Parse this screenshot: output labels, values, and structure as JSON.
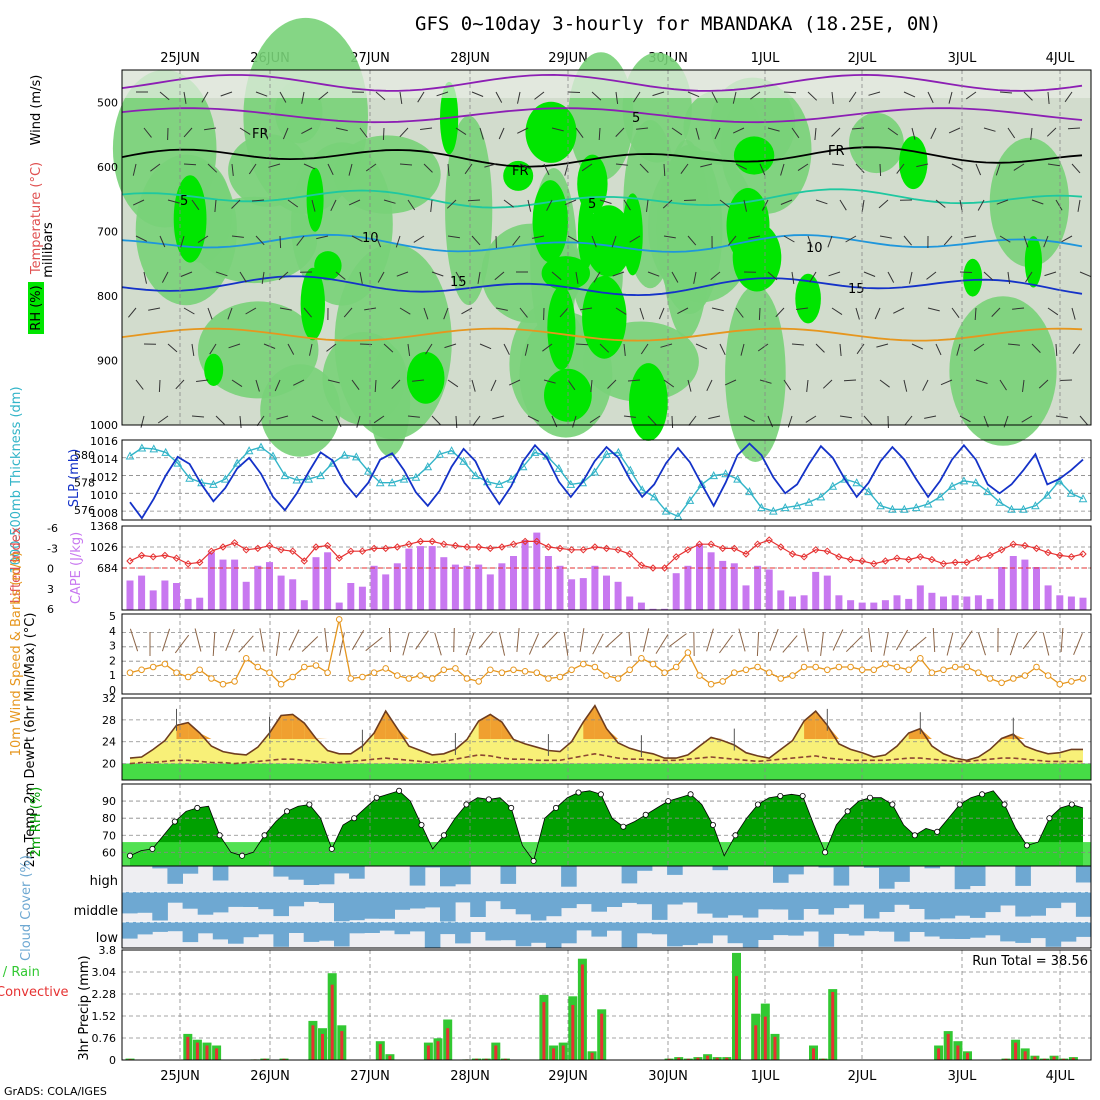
{
  "title": "GFS 0~10day 3-hourly for MBANDAKA (18.25E, 0N)",
  "credit": "GrADS: COLA/IGES",
  "colors": {
    "rh_light": "#d2dccd",
    "rh_mid": "#78d278",
    "rh_dark": "#00e600",
    "slp_line": "#1432c8",
    "thickness_line": "#32b4c8",
    "cape_bar": "#c878f0",
    "lifted_index": "#e63232",
    "wind_speed": "#e6961e",
    "barbs": "#8c6446",
    "temp_band_hot": "#f0a030",
    "temp_band_warm": "#f8f078",
    "temp_band_cool": "#46dc46",
    "temp_line": "#6e3c1e",
    "rh2m_dark": "#00a000",
    "rh2m_light": "#32dc32",
    "cloud": "#6ea8d2",
    "precip_total": "#32c832",
    "precip_conv": "#e63232"
  },
  "chart_data": [
    {
      "type": "heatmap",
      "panel": "upper-air cross section",
      "xlabel": "",
      "ylabel": "millibars",
      "side_labels": [
        "RH (%)",
        "Temperature (°C)",
        "Wind (m/s)"
      ],
      "ylim": [
        1000,
        450
      ],
      "y_ticks": [
        500,
        600,
        700,
        800,
        900,
        1000
      ],
      "x_ticks": [
        "25JUN",
        "26JUN",
        "27JUN",
        "28JUN",
        "29JUN",
        "30JUN",
        "1JUL",
        "2JUL",
        "3JUL",
        "4JUL"
      ],
      "isotherms": [
        {
          "label": "FR",
          "level": 585
        },
        {
          "label": "5",
          "level": 650
        },
        {
          "label": "10",
          "level": 720
        },
        {
          "label": "15",
          "level": 785
        }
      ],
      "contour_labels": [
        "5",
        "FR",
        "FR",
        "FR",
        "5",
        "5",
        "10",
        "10",
        "15",
        "15"
      ]
    },
    {
      "type": "line",
      "panel": "SLP and thickness",
      "ylabel_left": "1000-500mb Thickness (dm)",
      "ylabel_right": "SLP (mb)",
      "left_ticks": [
        "576",
        "578",
        "580"
      ],
      "right_ticks": [
        "1008",
        "1010",
        "1012",
        "1014",
        "1016"
      ],
      "ylim": [
        1007,
        1016
      ],
      "series": [
        {
          "name": "SLP",
          "values": [
            1009.0,
            1007.2,
            1009.4,
            1012.0,
            1014.1,
            1013.3,
            1011.0,
            1009.1,
            1010.6,
            1012.8,
            1014.0,
            1012.2,
            1009.6,
            1008.1,
            1010.0,
            1012.4,
            1014.6,
            1013.7,
            1011.2,
            1009.6,
            1011.2,
            1013.8,
            1014.5,
            1012.6,
            1010.1,
            1008.6,
            1010.3,
            1013.0,
            1015.0,
            1013.6,
            1010.8,
            1008.8,
            1010.8,
            1013.6,
            1015.4,
            1014.0,
            1011.3,
            1009.6,
            1011.3,
            1013.6,
            1015.2,
            1014.0,
            1011.5,
            1009.6,
            1011.0,
            1013.4,
            1015.1,
            1013.5,
            1011.0,
            1008.6,
            1011.2,
            1014.3,
            1015.6,
            1014.3,
            1011.8,
            1010.0,
            1011.0,
            1013.3,
            1015.3,
            1014.0,
            1011.6,
            1009.6,
            1011.2,
            1013.6,
            1015.2,
            1013.8,
            1011.6,
            1009.6,
            1011.4,
            1013.8,
            1015.4,
            1013.8,
            1011.0,
            1010.0,
            1011.0,
            1012.6,
            1014.4,
            1011.0,
            1011.6,
            1012.6,
            1013.8
          ]
        },
        {
          "name": "Thickness",
          "values": [
            1014.2,
            1015.1,
            1015.0,
            1014.6,
            1013.4,
            1011.7,
            1011.2,
            1011.0,
            1011.6,
            1013.4,
            1014.8,
            1015.2,
            1014.2,
            1012.0,
            1011.5,
            1011.6,
            1012.0,
            1013.4,
            1014.3,
            1014.1,
            1012.5,
            1011.2,
            1011.2,
            1011.6,
            1011.8,
            1013.0,
            1014.4,
            1014.8,
            1013.6,
            1012.0,
            1011.3,
            1011.0,
            1011.6,
            1013.0,
            1014.6,
            1014.2,
            1012.8,
            1011.0,
            1011.2,
            1012.4,
            1014.4,
            1014.6,
            1012.6,
            1010.4,
            1009.6,
            1008.0,
            1007.4,
            1009.2,
            1011.0,
            1012.0,
            1012.2,
            1011.6,
            1010.2,
            1008.4,
            1008.0,
            1008.4,
            1008.6,
            1009.0,
            1009.6,
            1010.8,
            1011.6,
            1011.2,
            1010.2,
            1008.6,
            1008.2,
            1008.2,
            1008.4,
            1008.8,
            1009.6,
            1010.8,
            1011.4,
            1011.2,
            1010.2,
            1009.0,
            1008.2,
            1008.2,
            1008.6,
            1009.8,
            1011.4,
            1010.0,
            1009.4
          ]
        }
      ]
    },
    {
      "type": "bar",
      "panel": "CAPE and lifted index",
      "ylabel_left": "Lifted Index",
      "ylabel_right": "CAPE (J/kg)",
      "left_ticks": [
        "-6",
        "-3",
        "0",
        "3",
        "6"
      ],
      "right_ticks": [
        "684",
        "1026",
        "1368"
      ],
      "ylim": [
        0,
        1368
      ],
      "series": [
        {
          "name": "CAPE",
          "values": [
            480,
            560,
            320,
            480,
            440,
            180,
            200,
            940,
            820,
            820,
            460,
            720,
            780,
            560,
            500,
            160,
            860,
            940,
            120,
            440,
            380,
            720,
            580,
            760,
            1000,
            1040,
            1040,
            860,
            740,
            720,
            740,
            580,
            760,
            880,
            1140,
            1260,
            880,
            720,
            500,
            520,
            720,
            560,
            460,
            220,
            120,
            20,
            20,
            600,
            720,
            1080,
            940,
            800,
            760,
            400,
            720,
            660,
            320,
            220,
            240,
            620,
            560,
            240,
            160,
            120,
            120,
            160,
            240,
            180,
            400,
            280,
            220,
            240,
            220,
            240,
            180,
            700,
            880,
            820,
            700,
            400,
            240,
            220,
            200
          ]
        },
        {
          "name": "Lifted Index",
          "values": [
            -1.0,
            -1.8,
            -1.6,
            -1.8,
            -1.4,
            -0.6,
            -0.8,
            -2.4,
            -3.0,
            -3.6,
            -2.6,
            -2.8,
            -3.2,
            -2.6,
            -2.4,
            -1.0,
            -3.0,
            -3.2,
            -1.4,
            -2.4,
            -2.4,
            -2.8,
            -2.8,
            -3.0,
            -3.4,
            -3.8,
            -3.8,
            -3.4,
            -3.2,
            -3.0,
            -3.0,
            -2.8,
            -3.0,
            -3.4,
            -3.8,
            -3.8,
            -3.0,
            -2.8,
            -2.6,
            -2.6,
            -3.0,
            -2.8,
            -2.6,
            -2.0,
            -0.4,
            0.0,
            0.0,
            -1.6,
            -2.6,
            -3.4,
            -3.4,
            -2.8,
            -2.8,
            -2.0,
            -3.4,
            -4.0,
            -3.0,
            -2.0,
            -1.6,
            -2.6,
            -2.4,
            -1.6,
            -1.2,
            -1.0,
            -0.6,
            -1.0,
            -1.4,
            -1.2,
            -1.6,
            -1.2,
            -0.6,
            -0.8,
            -0.8,
            -1.4,
            -1.8,
            -2.6,
            -3.4,
            -3.2,
            -2.8,
            -2.2,
            -1.8,
            -1.6,
            -2.0
          ]
        }
      ]
    },
    {
      "type": "line",
      "panel": "10m wind",
      "ylabel": "10m Wind Speed & Barbs (m/s)",
      "ticks": [
        "0",
        "1",
        "2",
        "3",
        "4",
        "5"
      ],
      "ylim": [
        0,
        5
      ],
      "series": [
        {
          "name": "Wind speed",
          "values": [
            1.2,
            1.4,
            1.6,
            1.8,
            1.2,
            0.9,
            1.4,
            0.8,
            0.4,
            0.6,
            2.2,
            1.6,
            1.2,
            0.4,
            0.9,
            1.6,
            1.7,
            1.2,
            4.9,
            0.8,
            0.9,
            1.2,
            1.5,
            1.0,
            0.8,
            1.0,
            0.8,
            1.4,
            1.5,
            0.8,
            0.6,
            1.4,
            1.2,
            1.4,
            1.3,
            1.2,
            0.8,
            0.9,
            1.4,
            1.8,
            1.6,
            1.0,
            0.8,
            1.4,
            2.2,
            1.8,
            1.2,
            1.6,
            2.6,
            1.0,
            0.4,
            0.6,
            1.2,
            1.4,
            1.6,
            1.2,
            0.8,
            1.0,
            1.6,
            1.6,
            1.4,
            1.6,
            1.6,
            1.4,
            1.4,
            1.8,
            1.6,
            1.4,
            2.2,
            1.2,
            1.4,
            1.6,
            1.6,
            1.2,
            0.8,
            0.5,
            0.8,
            1.0,
            1.6,
            1.0,
            0.4,
            0.6,
            0.8
          ]
        }
      ]
    },
    {
      "type": "area",
      "panel": "2m temperature",
      "ylabel": "2m Temp 2m DewPt (6hr Min/Max) (°C)",
      "ticks": [
        "20",
        "24",
        "28",
        "32"
      ],
      "ylim": [
        17,
        32
      ],
      "series": [
        {
          "name": "2m Temp",
          "values": [
            21.0,
            21.2,
            22.6,
            24.2,
            27.0,
            27.5,
            25.6,
            23.2,
            22.2,
            21.8,
            21.6,
            23.0,
            25.6,
            28.8,
            29.0,
            27.4,
            24.6,
            22.4,
            21.8,
            21.8,
            23.2,
            25.6,
            29.6,
            26.4,
            23.2,
            22.4,
            21.6,
            21.8,
            22.6,
            24.4,
            27.8,
            29.0,
            27.6,
            24.4,
            23.6,
            23.0,
            22.4,
            22.2,
            24.0,
            27.6,
            30.6,
            26.4,
            23.8,
            22.8,
            22.2,
            21.8,
            21.0,
            21.0,
            21.6,
            23.2,
            24.8,
            24.2,
            23.4,
            22.0,
            21.4,
            21.0,
            22.6,
            24.2,
            27.8,
            29.6,
            27.0,
            23.6,
            22.6,
            22.0,
            21.2,
            21.6,
            23.2,
            25.6,
            26.4,
            23.2,
            21.8,
            21.0,
            20.6,
            21.2,
            22.6,
            24.6,
            25.4,
            23.2,
            22.4,
            21.8,
            22.0,
            22.6,
            22.6
          ]
        },
        {
          "name": "2m DewPt",
          "values": [
            20.0,
            20.2,
            20.2,
            20.4,
            20.6,
            20.6,
            20.4,
            20.2,
            20.2,
            20.0,
            20.2,
            20.4,
            20.6,
            20.8,
            20.8,
            20.6,
            20.4,
            20.2,
            20.2,
            20.4,
            20.6,
            20.8,
            21.0,
            20.8,
            20.6,
            20.4,
            20.2,
            20.4,
            20.8,
            21.2,
            21.6,
            21.4,
            21.0,
            20.8,
            20.8,
            20.6,
            20.6,
            20.6,
            21.0,
            21.4,
            21.8,
            21.4,
            21.0,
            20.8,
            20.8,
            20.6,
            20.6,
            20.6,
            20.8,
            21.0,
            21.2,
            21.0,
            20.8,
            20.6,
            20.4,
            20.6,
            20.8,
            21.0,
            21.2,
            21.4,
            21.0,
            20.8,
            20.6,
            20.6,
            20.6,
            20.6,
            20.8,
            21.0,
            21.0,
            20.8,
            20.6,
            20.4,
            20.4,
            20.6,
            20.8,
            21.0,
            21.0,
            20.8,
            20.6,
            20.4,
            20.4,
            20.4,
            20.4
          ]
        }
      ]
    },
    {
      "type": "area",
      "panel": "2m relative humidity",
      "ylabel": "2m RH (%)",
      "ticks": [
        "60",
        "70",
        "80",
        "90"
      ],
      "ylim": [
        52,
        100
      ],
      "series": [
        {
          "name": "2m RH",
          "values": [
            58,
            61,
            62,
            70,
            78,
            84,
            86,
            87,
            70,
            60,
            58,
            60,
            70,
            78,
            84,
            87,
            88,
            80,
            62,
            76,
            80,
            86,
            92,
            94,
            96,
            90,
            76,
            62,
            70,
            80,
            88,
            92,
            91,
            92,
            86,
            64,
            55,
            80,
            86,
            92,
            95,
            96,
            94,
            80,
            75,
            78,
            82,
            86,
            90,
            92,
            94,
            88,
            76,
            58,
            70,
            80,
            88,
            92,
            93,
            94,
            93,
            76,
            60,
            76,
            84,
            90,
            92,
            92,
            88,
            76,
            70,
            74,
            72,
            80,
            88,
            92,
            94,
            96,
            88,
            74,
            64,
            66,
            80,
            86,
            88,
            86
          ]
        }
      ]
    },
    {
      "type": "heatmap",
      "panel": "cloud cover",
      "ylabel": "Cloud Cover (%)",
      "rows": [
        "high",
        "middle",
        "low"
      ]
    },
    {
      "type": "bar",
      "panel": "3hr precipitation",
      "ylabel": "3hr Precip (mm)",
      "side_label": "Total / Rain Convective",
      "ticks": [
        "0",
        "0.76",
        "1.52",
        "2.28",
        "3.04",
        "3.8"
      ],
      "ylim": [
        0,
        3.8
      ],
      "run_total_label": "Run Total = 38.56",
      "series": [
        {
          "name": "Total",
          "values": [
            0.05,
            0,
            0,
            0,
            0,
            0,
            0.9,
            0.7,
            0.6,
            0.5,
            0,
            0,
            0,
            0.02,
            0.05,
            0,
            0.05,
            0,
            0,
            1.35,
            1.1,
            3.0,
            1.2,
            0,
            0,
            0,
            0.65,
            0.2,
            0,
            0,
            0,
            0.6,
            0.75,
            1.4,
            0,
            0.02,
            0.05,
            0.05,
            0.6,
            0.05,
            0,
            0,
            0,
            2.25,
            0.5,
            0.6,
            2.2,
            3.5,
            0.3,
            1.75,
            0,
            0,
            0,
            0,
            0,
            0,
            0.05,
            0.1,
            0.05,
            0.1,
            0.2,
            0.1,
            0.1,
            3.7,
            0,
            1.6,
            1.95,
            0.9,
            0,
            0,
            0,
            0.5,
            0.05,
            2.45,
            0,
            0,
            0,
            0,
            0,
            0,
            0,
            0,
            0,
            0,
            0.5,
            1.0,
            0.65,
            0.3,
            0,
            0,
            0,
            0.05,
            0.7,
            0.4,
            0.15,
            0.05,
            0.15,
            0.05,
            0.1,
            0
          ]
        },
        {
          "name": "Convective",
          "values": [
            0.03,
            0,
            0,
            0,
            0,
            0,
            0.8,
            0.6,
            0.5,
            0.4,
            0,
            0,
            0,
            0.02,
            0.04,
            0,
            0.04,
            0,
            0,
            1.2,
            0.9,
            2.6,
            1.0,
            0,
            0,
            0,
            0.55,
            0.15,
            0,
            0,
            0,
            0.5,
            0.65,
            1.1,
            0,
            0.02,
            0.04,
            0.04,
            0.5,
            0.04,
            0,
            0,
            0,
            2.0,
            0.4,
            0.5,
            1.9,
            3.3,
            0.25,
            1.6,
            0,
            0,
            0,
            0,
            0,
            0,
            0.04,
            0.08,
            0.04,
            0.08,
            0.15,
            0.08,
            0.08,
            2.9,
            0,
            1.2,
            1.5,
            0.8,
            0,
            0,
            0,
            0.4,
            0.04,
            2.35,
            0,
            0,
            0,
            0,
            0,
            0,
            0,
            0,
            0,
            0,
            0.4,
            0.9,
            0.5,
            0.25,
            0,
            0,
            0,
            0.04,
            0.6,
            0.3,
            0.12,
            0.04,
            0.12,
            0.04,
            0.08,
            0
          ]
        }
      ]
    }
  ]
}
